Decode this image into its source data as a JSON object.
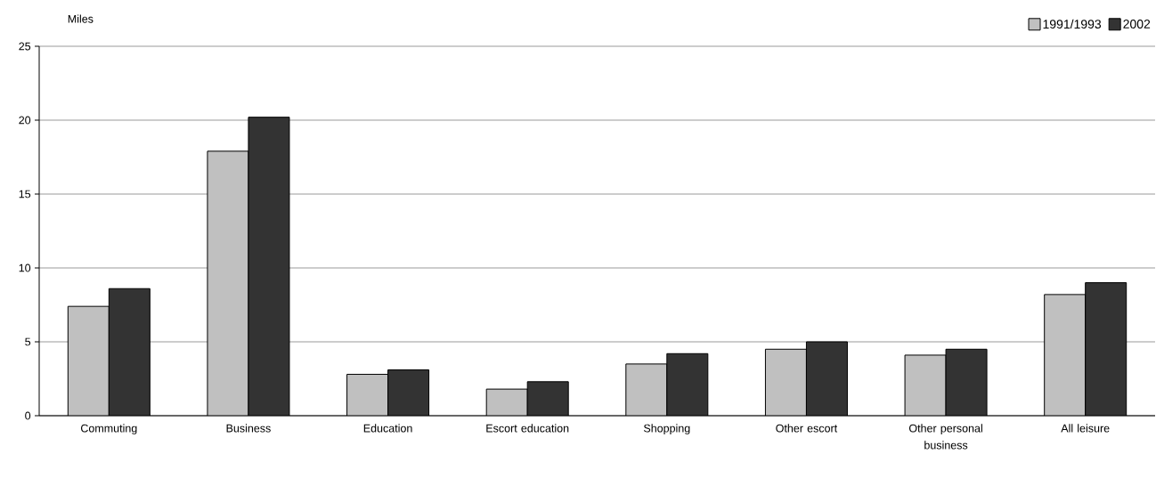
{
  "chart_data": {
    "type": "bar",
    "ylabel": "Miles",
    "categories": [
      "Commuting",
      "Business",
      "Education",
      "Escort education",
      "Shopping",
      "Other escort",
      "Other personal business",
      "All leisure"
    ],
    "series": [
      {
        "name": "1991/1993",
        "color": "#c0c0c0",
        "values": [
          7.4,
          17.9,
          2.8,
          1.8,
          3.5,
          4.5,
          4.1,
          8.2
        ]
      },
      {
        "name": "2002",
        "color": "#333333",
        "values": [
          8.6,
          20.2,
          3.1,
          2.3,
          4.2,
          5.0,
          4.5,
          9.0
        ]
      }
    ],
    "ylim": [
      0,
      25
    ],
    "yticks": [
      0,
      5,
      10,
      15,
      20,
      25
    ],
    "grid": "y",
    "legend": "top right"
  }
}
